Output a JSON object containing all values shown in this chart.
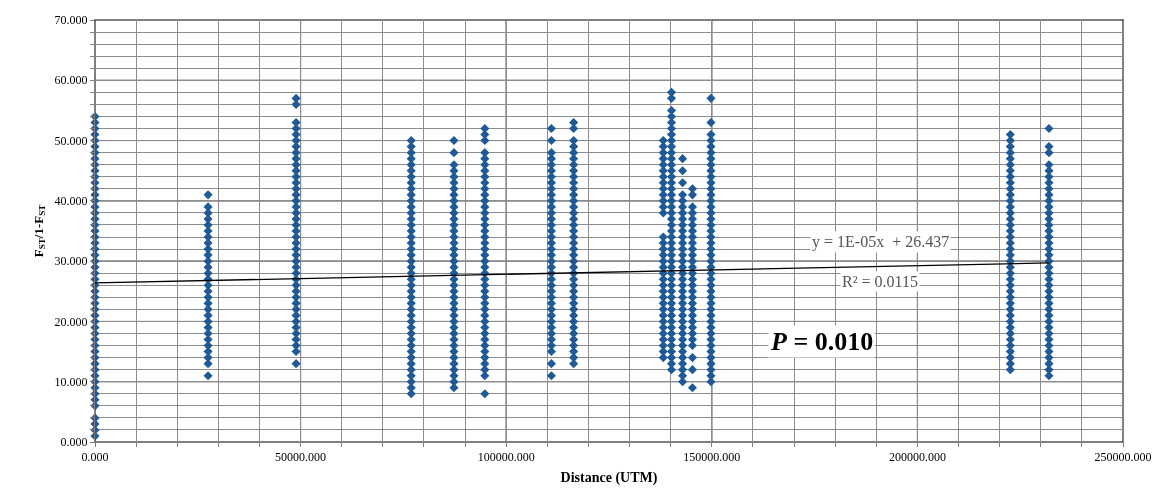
{
  "chart_data": {
    "type": "scatter",
    "xlabel": "Distance (UTM)",
    "ylabel": "F$_{ST}$/1-F$_{ST}$",
    "marker": "diamond",
    "grid": true,
    "xlim": [
      0,
      250000
    ],
    "ylim": [
      0,
      70
    ],
    "xticks": [
      {
        "value": 0,
        "label": "0.000"
      },
      {
        "value": 10000,
        "label": null
      },
      {
        "value": 20000,
        "label": null
      },
      {
        "value": 30000,
        "label": null
      },
      {
        "value": 40000,
        "label": null
      },
      {
        "value": 50000,
        "label": "50000.000"
      },
      {
        "value": 60000,
        "label": null
      },
      {
        "value": 70000,
        "label": null
      },
      {
        "value": 80000,
        "label": null
      },
      {
        "value": 90000,
        "label": null
      },
      {
        "value": 100000,
        "label": "100000.000"
      },
      {
        "value": 110000,
        "label": null
      },
      {
        "value": 120000,
        "label": null
      },
      {
        "value": 130000,
        "label": null
      },
      {
        "value": 140000,
        "label": null
      },
      {
        "value": 150000,
        "label": "150000.000"
      },
      {
        "value": 160000,
        "label": null
      },
      {
        "value": 170000,
        "label": null
      },
      {
        "value": 180000,
        "label": null
      },
      {
        "value": 190000,
        "label": null
      },
      {
        "value": 200000,
        "label": "200000.000"
      },
      {
        "value": 210000,
        "label": null
      },
      {
        "value": 220000,
        "label": null
      },
      {
        "value": 230000,
        "label": null
      },
      {
        "value": 240000,
        "label": null
      },
      {
        "value": 250000,
        "label": "250000.000"
      }
    ],
    "yticks": [
      {
        "value": 0,
        "label": "0.000"
      },
      {
        "value": 2,
        "label": null
      },
      {
        "value": 4,
        "label": null
      },
      {
        "value": 6,
        "label": null
      },
      {
        "value": 8,
        "label": null
      },
      {
        "value": 10,
        "label": "10.000"
      },
      {
        "value": 12,
        "label": null
      },
      {
        "value": 14,
        "label": null
      },
      {
        "value": 16,
        "label": null
      },
      {
        "value": 18,
        "label": null
      },
      {
        "value": 20,
        "label": "20.000"
      },
      {
        "value": 22,
        "label": null
      },
      {
        "value": 24,
        "label": null
      },
      {
        "value": 26,
        "label": null
      },
      {
        "value": 28,
        "label": null
      },
      {
        "value": 30,
        "label": "30.000"
      },
      {
        "value": 32,
        "label": null
      },
      {
        "value": 34,
        "label": null
      },
      {
        "value": 36,
        "label": null
      },
      {
        "value": 38,
        "label": null
      },
      {
        "value": 40,
        "label": "40.000"
      },
      {
        "value": 42,
        "label": null
      },
      {
        "value": 44,
        "label": null
      },
      {
        "value": 46,
        "label": null
      },
      {
        "value": 48,
        "label": null
      },
      {
        "value": 50,
        "label": "50.000"
      },
      {
        "value": 52,
        "label": null
      },
      {
        "value": 54,
        "label": null
      },
      {
        "value": 56,
        "label": null
      },
      {
        "value": 58,
        "label": null
      },
      {
        "value": 60,
        "label": "60.000"
      },
      {
        "value": 62,
        "label": null
      },
      {
        "value": 64,
        "label": null
      },
      {
        "value": 66,
        "label": null
      },
      {
        "value": 68,
        "label": null
      },
      {
        "value": 70,
        "label": "70.000"
      }
    ],
    "annotations": [
      "y = 1E-05x  + 26.437",
      "R² = 0.0115",
      "P = 0.010"
    ],
    "series": [
      {
        "color": "#1f5a96",
        "x": [
          0,
          0,
          0,
          0,
          0,
          0,
          0,
          0,
          0,
          0,
          0,
          0,
          0,
          0,
          0,
          0,
          0,
          0,
          0,
          0,
          0,
          0,
          0,
          0,
          0,
          0,
          0,
          0,
          0,
          0,
          0,
          0,
          0,
          0,
          0,
          0,
          0,
          0,
          0,
          0,
          0,
          0,
          0,
          0,
          0,
          0,
          0,
          0,
          0,
          0,
          0,
          0,
          0
        ],
        "values": [
          54,
          53,
          52,
          51,
          50,
          49,
          48,
          47,
          46,
          45,
          44,
          43,
          42,
          41,
          40,
          39,
          38,
          37,
          36,
          35,
          34,
          33,
          32,
          31,
          30,
          29,
          28,
          27,
          26,
          25,
          24,
          23,
          22,
          21,
          20,
          19,
          18,
          17,
          16,
          15,
          14,
          13,
          12,
          11,
          10,
          9,
          8,
          7,
          6,
          4,
          3,
          2,
          1
        ]
      },
      {
        "color": "#1f5a96",
        "x": [
          27500,
          27500,
          27500,
          27500,
          27500,
          27500,
          27500,
          27500,
          27500,
          27500,
          27500,
          27500,
          27500,
          27500,
          27500,
          27500,
          27500,
          27500,
          27500,
          27500,
          27500,
          27500,
          27500,
          27500,
          27500,
          27500,
          27500,
          27500,
          27500
        ],
        "values": [
          41,
          39,
          38,
          37,
          36,
          35,
          34,
          33,
          32,
          31,
          30,
          29,
          28,
          27,
          26,
          25,
          24,
          23,
          22,
          21,
          20,
          19,
          18,
          17,
          16,
          15,
          14,
          13,
          11
        ]
      },
      {
        "color": "#1f5a96",
        "x": [
          48900,
          48900,
          48900,
          48900,
          48900,
          48900,
          48900,
          48900,
          48900,
          48900,
          48900,
          48900,
          48900,
          48900,
          48900,
          48900,
          48900,
          48900,
          48900,
          48900,
          48900,
          48900,
          48900,
          48900,
          48900,
          48900,
          48900,
          48900,
          48900,
          48900,
          48900,
          48900,
          48900,
          48900,
          48900,
          48900,
          48900,
          48900,
          48900,
          48900,
          48900,
          48900
        ],
        "values": [
          57,
          56,
          53,
          52,
          51,
          50,
          49,
          48,
          47,
          46,
          45,
          44,
          43,
          42,
          41,
          40,
          39,
          38,
          37,
          36,
          35,
          34,
          33,
          32,
          31,
          30,
          29,
          28,
          27,
          26,
          25,
          24,
          23,
          22,
          21,
          20,
          19,
          18,
          17,
          16,
          15,
          13
        ]
      },
      {
        "color": "#1f5a96",
        "x": [
          76900,
          76900,
          76900,
          76900,
          76900,
          76900,
          76900,
          76900,
          76900,
          76900,
          76900,
          76900,
          76900,
          76900,
          76900,
          76900,
          76900,
          76900,
          76900,
          76900,
          76900,
          76900,
          76900,
          76900,
          76900,
          76900,
          76900,
          76900,
          76900,
          76900,
          76900,
          76900,
          76900,
          76900,
          76900,
          76900,
          76900,
          76900,
          76900,
          76900,
          76900,
          76900,
          76900
        ],
        "values": [
          50,
          49,
          48,
          47,
          46,
          45,
          44,
          43,
          42,
          41,
          40,
          39,
          38,
          37,
          36,
          35,
          34,
          33,
          32,
          31,
          30,
          29,
          28,
          27,
          26,
          25,
          24,
          23,
          22,
          21,
          20,
          19,
          18,
          17,
          16,
          15,
          14,
          13,
          12,
          11,
          10,
          9,
          8
        ]
      },
      {
        "color": "#1f5a96",
        "x": [
          87300,
          87300,
          87300,
          87300,
          87300,
          87300,
          87300,
          87300,
          87300,
          87300,
          87300,
          87300,
          87300,
          87300,
          87300,
          87300,
          87300,
          87300,
          87300,
          87300,
          87300,
          87300,
          87300,
          87300,
          87300,
          87300,
          87300,
          87300,
          87300,
          87300,
          87300,
          87300,
          87300,
          87300,
          87300,
          87300,
          87300,
          87300,
          87300,
          87300
        ],
        "values": [
          50,
          48,
          46,
          45,
          44,
          43,
          42,
          41,
          40,
          39,
          38,
          37,
          36,
          35,
          34,
          33,
          32,
          31,
          30,
          29,
          28,
          27,
          26,
          25,
          24,
          23,
          22,
          21,
          20,
          19,
          18,
          17,
          16,
          15,
          14,
          13,
          12,
          11,
          10,
          9
        ]
      },
      {
        "color": "#1f5a96",
        "x": [
          94800,
          94800,
          94800,
          94800,
          94800,
          94800,
          94800,
          94800,
          94800,
          94800,
          94800,
          94800,
          94800,
          94800,
          94800,
          94800,
          94800,
          94800,
          94800,
          94800,
          94800,
          94800,
          94800,
          94800,
          94800,
          94800,
          94800,
          94800,
          94800,
          94800,
          94800,
          94800,
          94800,
          94800,
          94800,
          94800,
          94800,
          94800,
          94800,
          94800,
          94800,
          94800
        ],
        "values": [
          52,
          51,
          50,
          48,
          47,
          46,
          45,
          44,
          43,
          42,
          41,
          40,
          39,
          38,
          37,
          36,
          35,
          34,
          33,
          32,
          31,
          30,
          29,
          28,
          27,
          26,
          25,
          24,
          23,
          22,
          21,
          20,
          19,
          18,
          17,
          16,
          15,
          14,
          13,
          12,
          11,
          8
        ]
      },
      {
        "color": "#1f5a96",
        "x": [
          111000,
          111000,
          111000,
          111000,
          111000,
          111000,
          111000,
          111000,
          111000,
          111000,
          111000,
          111000,
          111000,
          111000,
          111000,
          111000,
          111000,
          111000,
          111000,
          111000,
          111000,
          111000,
          111000,
          111000,
          111000,
          111000,
          111000,
          111000,
          111000,
          111000,
          111000,
          111000,
          111000,
          111000,
          111000,
          111000,
          111000,
          111000
        ],
        "values": [
          52,
          50,
          48,
          47,
          46,
          45,
          44,
          43,
          42,
          41,
          40,
          39,
          38,
          37,
          36,
          35,
          34,
          33,
          32,
          31,
          30,
          29,
          28,
          27,
          26,
          25,
          24,
          23,
          22,
          21,
          20,
          19,
          18,
          17,
          16,
          15,
          13,
          11
        ]
      },
      {
        "color": "#1f5a96",
        "x": [
          116400,
          116400,
          116400,
          116400,
          116400,
          116400,
          116400,
          116400,
          116400,
          116400,
          116400,
          116400,
          116400,
          116400,
          116400,
          116400,
          116400,
          116400,
          116400,
          116400,
          116400,
          116400,
          116400,
          116400,
          116400,
          116400,
          116400,
          116400,
          116400,
          116400,
          116400,
          116400,
          116400,
          116400,
          116400,
          116400,
          116400,
          116400,
          116400,
          116400
        ],
        "values": [
          53,
          52,
          50,
          49,
          48,
          47,
          46,
          45,
          44,
          43,
          42,
          41,
          40,
          39,
          38,
          37,
          36,
          35,
          34,
          33,
          32,
          31,
          30,
          29,
          28,
          27,
          26,
          25,
          24,
          23,
          22,
          21,
          20,
          19,
          18,
          17,
          16,
          15,
          14,
          13
        ]
      },
      {
        "color": "#1f5a96",
        "x": [
          138200,
          138200,
          138200,
          138200,
          138200,
          138200,
          138200,
          138200,
          138200,
          138200,
          138200,
          138200,
          138200,
          138200,
          138200,
          138200,
          138200,
          138200,
          138200,
          138200,
          138200,
          138200,
          138200,
          138200,
          138200,
          138200,
          138200,
          138200,
          138200,
          138200,
          138200,
          138200,
          138200,
          138200
        ],
        "values": [
          50,
          49,
          48,
          47,
          46,
          45,
          44,
          43,
          42,
          41,
          40,
          39,
          38,
          34,
          33,
          32,
          31,
          30,
          29,
          28,
          27,
          26,
          25,
          24,
          23,
          22,
          21,
          20,
          19,
          18,
          17,
          16,
          15,
          14
        ]
      },
      {
        "color": "#1f5a96",
        "x": [
          140200,
          140200,
          140200,
          140200,
          140200,
          140200,
          140200,
          140200,
          140200,
          140200,
          140200,
          140200,
          140200,
          140200,
          140200,
          140200,
          140200,
          140200,
          140200,
          140200,
          140200,
          140200,
          140200,
          140200,
          140200,
          140200,
          140200,
          140200,
          140200,
          140200,
          140200,
          140200,
          140200,
          140200,
          140200,
          140200,
          140200,
          140200,
          140200,
          140200,
          140200,
          140200,
          140200,
          140200,
          140200,
          140200
        ],
        "values": [
          58,
          57,
          55,
          54,
          53,
          52,
          51,
          50,
          49,
          48,
          47,
          46,
          45,
          44,
          43,
          42,
          41,
          40,
          39,
          38,
          37,
          36,
          35,
          34,
          33,
          32,
          31,
          30,
          29,
          28,
          27,
          26,
          25,
          24,
          23,
          22,
          21,
          20,
          19,
          18,
          17,
          16,
          15,
          14,
          13,
          12
        ]
      },
      {
        "color": "#1f5a96",
        "x": [
          142900,
          142900,
          142900,
          142900,
          142900,
          142900,
          142900,
          142900,
          142900,
          142900,
          142900,
          142900,
          142900,
          142900,
          142900,
          142900,
          142900,
          142900,
          142900,
          142900,
          142900,
          142900,
          142900,
          142900,
          142900,
          142900,
          142900,
          142900,
          142900,
          142900,
          142900,
          142900,
          142900,
          142900,
          142900
        ],
        "values": [
          47,
          45,
          43,
          41,
          40,
          39,
          38,
          37,
          36,
          35,
          34,
          33,
          32,
          31,
          30,
          29,
          28,
          27,
          26,
          25,
          24,
          23,
          22,
          21,
          20,
          19,
          18,
          17,
          16,
          15,
          14,
          13,
          12,
          11,
          10
        ]
      },
      {
        "color": "#1f5a96",
        "x": [
          145300,
          145300,
          145300,
          145300,
          145300,
          145300,
          145300,
          145300,
          145300,
          145300,
          145300,
          145300,
          145300,
          145300,
          145300,
          145300,
          145300,
          145300,
          145300,
          145300,
          145300,
          145300,
          145300,
          145300,
          145300,
          145300,
          145300,
          145300,
          145300
        ],
        "values": [
          42,
          41,
          39,
          38,
          37,
          36,
          35,
          34,
          33,
          32,
          31,
          30,
          29,
          28,
          27,
          26,
          25,
          24,
          23,
          22,
          21,
          20,
          19,
          18,
          17,
          16,
          14,
          12,
          9
        ]
      },
      {
        "color": "#1f5a96",
        "x": [
          149800,
          149800,
          149800,
          149800,
          149800,
          149800,
          149800,
          149800,
          149800,
          149800,
          149800,
          149800,
          149800,
          149800,
          149800,
          149800,
          149800,
          149800,
          149800,
          149800,
          149800,
          149800,
          149800,
          149800,
          149800,
          149800,
          149800,
          149800,
          149800,
          149800,
          149800,
          149800,
          149800,
          149800,
          149800,
          149800,
          149800,
          149800,
          149800,
          149800,
          149800,
          149800,
          149800,
          149800
        ],
        "values": [
          57,
          53,
          51,
          50,
          49,
          48,
          47,
          46,
          45,
          44,
          43,
          42,
          41,
          40,
          39,
          38,
          37,
          36,
          35,
          34,
          33,
          32,
          31,
          30,
          29,
          28,
          27,
          26,
          25,
          24,
          23,
          22,
          21,
          20,
          19,
          18,
          17,
          16,
          15,
          14,
          13,
          12,
          11,
          10
        ]
      },
      {
        "color": "#1f5a96",
        "x": [
          222600,
          222600,
          222600,
          222600,
          222600,
          222600,
          222600,
          222600,
          222600,
          222600,
          222600,
          222600,
          222600,
          222600,
          222600,
          222600,
          222600,
          222600,
          222600,
          222600,
          222600,
          222600,
          222600,
          222600,
          222600,
          222600,
          222600,
          222600,
          222600,
          222600,
          222600,
          222600,
          222600,
          222600,
          222600,
          222600,
          222600,
          222600,
          222600,
          222600
        ],
        "values": [
          51,
          50,
          49,
          48,
          47,
          46,
          45,
          44,
          43,
          42,
          41,
          40,
          39,
          38,
          37,
          36,
          35,
          34,
          33,
          32,
          31,
          30,
          29,
          28,
          27,
          26,
          25,
          24,
          23,
          22,
          21,
          20,
          19,
          18,
          17,
          16,
          15,
          14,
          13,
          12
        ]
      },
      {
        "color": "#1f5a96",
        "x": [
          232000,
          232000,
          232000,
          232000,
          232000,
          232000,
          232000,
          232000,
          232000,
          232000,
          232000,
          232000,
          232000,
          232000,
          232000,
          232000,
          232000,
          232000,
          232000,
          232000,
          232000,
          232000,
          232000,
          232000,
          232000,
          232000,
          232000,
          232000,
          232000,
          232000,
          232000,
          232000,
          232000,
          232000,
          232000,
          232000,
          232000,
          232000,
          232000
        ],
        "values": [
          52,
          49,
          48,
          46,
          45,
          44,
          43,
          42,
          41,
          40,
          39,
          38,
          37,
          36,
          35,
          34,
          33,
          32,
          31,
          30,
          29,
          28,
          27,
          26,
          25,
          24,
          23,
          22,
          21,
          20,
          19,
          18,
          17,
          16,
          15,
          14,
          13,
          12,
          11
        ]
      },
      {
        "type": "line",
        "marker": "none",
        "color": "#000000",
        "x": [
          0,
          232000
        ],
        "values": [
          26.4,
          29.7
        ]
      }
    ]
  }
}
